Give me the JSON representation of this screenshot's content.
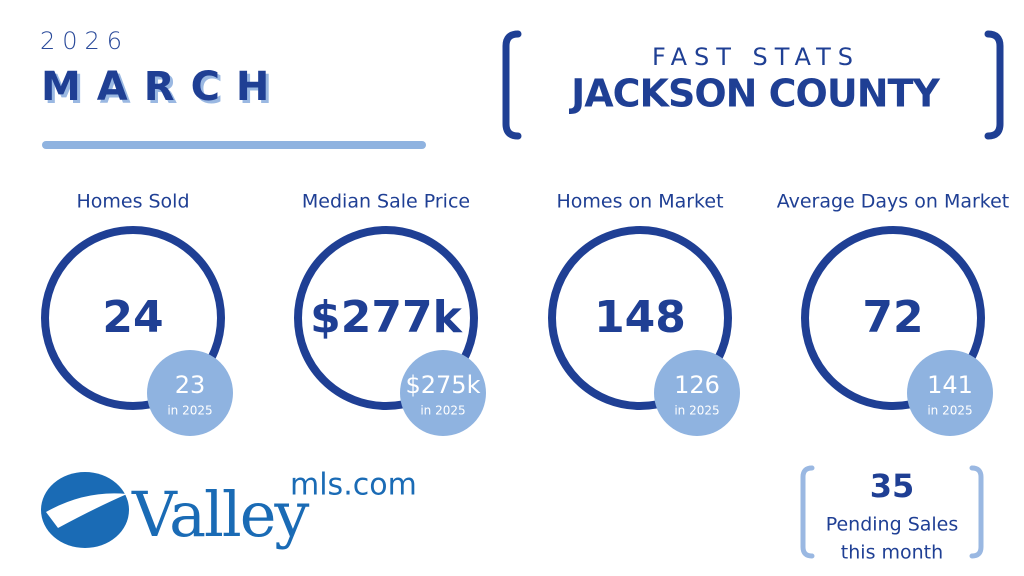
{
  "header": {
    "year": "2026",
    "month": "MARCH",
    "kicker": "FAST STATS",
    "title": "JACKSON COUNTY"
  },
  "stats": [
    {
      "label": "Homes Sold",
      "value": "24",
      "prior": "23",
      "prior_note": "in 2025"
    },
    {
      "label": "Median Sale Price",
      "value": "$277k",
      "prior": "$275k",
      "prior_note": "in 2025"
    },
    {
      "label": "Homes on Market",
      "value": "148",
      "prior": "126",
      "prior_note": "in 2025"
    },
    {
      "label": "Average Days on Market",
      "value": "72",
      "prior": "141",
      "prior_note": "in 2025"
    }
  ],
  "logo": {
    "name": "Valley",
    "suffix": "mls.com"
  },
  "pending": {
    "value": "35",
    "line1": "Pending Sales",
    "line2": "this month"
  }
}
